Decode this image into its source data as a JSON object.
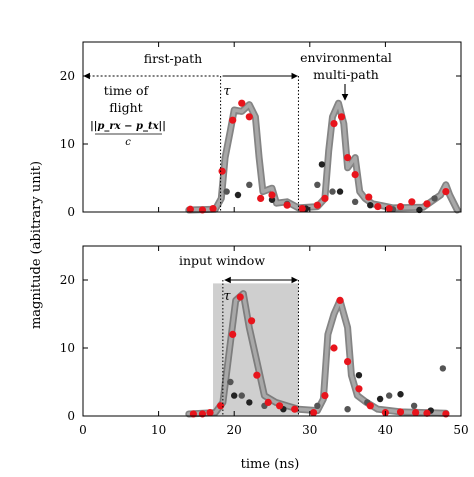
{
  "chart_data": {
    "type": "scatter",
    "xlabel": "time (ns)",
    "ylabel": "magnitude (abitrary unit)",
    "xlim": [
      0,
      50
    ],
    "ylim": [
      0,
      25
    ],
    "xticks": [
      "0",
      "10",
      "20",
      "30",
      "40",
      "50"
    ],
    "yticks": [
      "0",
      "10",
      "20"
    ],
    "panels": [
      {
        "name": "top",
        "annotations": {
          "first_path": "first-path",
          "tau": "τ",
          "tof_line1": "time of",
          "tof_line2": "flight",
          "tof_formula_num": "||p_rx − p_tx||",
          "tof_formula_den": "c",
          "env_line1": "environmental",
          "env_line2": "multi-path"
        },
        "first_path_time": 18.2,
        "tau_end_time": 28.5,
        "red_points": [
          [
            14.2,
            0.4
          ],
          [
            15.8,
            0.3
          ],
          [
            17.2,
            0.5
          ],
          [
            18.4,
            6
          ],
          [
            19.8,
            13.5
          ],
          [
            21,
            16
          ],
          [
            22,
            14
          ],
          [
            23.5,
            2
          ],
          [
            25,
            2.5
          ],
          [
            27,
            1
          ],
          [
            29,
            0.5
          ],
          [
            31,
            1
          ],
          [
            32,
            2
          ],
          [
            33.2,
            13
          ],
          [
            34.2,
            14
          ],
          [
            35,
            8
          ],
          [
            36,
            5.5
          ],
          [
            37.8,
            2.2
          ],
          [
            39,
            0.8
          ],
          [
            40.5,
            0.5
          ],
          [
            42,
            0.8
          ],
          [
            43.5,
            1.5
          ],
          [
            45.5,
            1.2
          ],
          [
            48,
            3
          ]
        ],
        "curve": [
          [
            14,
            0.3
          ],
          [
            17.5,
            0.4
          ],
          [
            18.3,
            2
          ],
          [
            18.8,
            8
          ],
          [
            19.5,
            12
          ],
          [
            20,
            15
          ],
          [
            21,
            14.8
          ],
          [
            22,
            15.8
          ],
          [
            22.8,
            14
          ],
          [
            23.3,
            8
          ],
          [
            23.8,
            3
          ],
          [
            25,
            3.5
          ],
          [
            25.6,
            1.3
          ],
          [
            27,
            1.5
          ],
          [
            28.5,
            0.6
          ],
          [
            31,
            0.8
          ],
          [
            32,
            2
          ],
          [
            32.5,
            9
          ],
          [
            33,
            14
          ],
          [
            33.8,
            16
          ],
          [
            34.5,
            13
          ],
          [
            35,
            6.5
          ],
          [
            36,
            8
          ],
          [
            36.6,
            3
          ],
          [
            37.3,
            2
          ],
          [
            38.3,
            1.2
          ],
          [
            41,
            0.6
          ],
          [
            45,
            0.7
          ],
          [
            47.3,
            2.5
          ],
          [
            48,
            4
          ],
          [
            48.5,
            2.5
          ],
          [
            49.5,
            0.3
          ]
        ],
        "scatter_dark": [
          [
            19,
            3
          ],
          [
            20.5,
            2.5
          ],
          [
            22,
            4
          ],
          [
            25,
            1.8
          ],
          [
            27,
            1.2
          ],
          [
            29.5,
            0.5
          ],
          [
            31,
            4
          ],
          [
            31.6,
            7
          ],
          [
            33,
            3
          ],
          [
            34,
            3
          ],
          [
            36,
            1.5
          ],
          [
            38,
            1
          ],
          [
            41,
            0.4
          ],
          [
            44.5,
            0.3
          ],
          [
            46.5,
            2
          ]
        ]
      },
      {
        "name": "bottom",
        "annotations": {
          "input_window": "input window",
          "tau": "τ"
        },
        "window_start": 17.2,
        "first_path_time": 18.5,
        "window_end": 28.5,
        "window_height": 19.5,
        "red_points": [
          [
            14.6,
            0.3
          ],
          [
            15.8,
            0.3
          ],
          [
            16.8,
            0.5
          ],
          [
            18.2,
            1.5
          ],
          [
            19.8,
            12
          ],
          [
            20.8,
            17.5
          ],
          [
            22.3,
            14
          ],
          [
            23,
            6
          ],
          [
            24.5,
            2
          ],
          [
            26,
            1.5
          ],
          [
            28,
            1
          ],
          [
            30.5,
            0.5
          ],
          [
            32,
            3
          ],
          [
            33.2,
            10
          ],
          [
            34,
            17
          ],
          [
            35,
            8
          ],
          [
            36.5,
            4
          ],
          [
            38,
            1.5
          ],
          [
            40,
            0.5
          ],
          [
            42,
            0.6
          ],
          [
            44,
            0.5
          ],
          [
            45.5,
            0.4
          ],
          [
            48,
            0.3
          ]
        ],
        "curve": [
          [
            14,
            0.3
          ],
          [
            17.5,
            0.5
          ],
          [
            18.5,
            2
          ],
          [
            19.4,
            10
          ],
          [
            20.2,
            17
          ],
          [
            21.2,
            18
          ],
          [
            22,
            13
          ],
          [
            23,
            8
          ],
          [
            24,
            3
          ],
          [
            25.5,
            2
          ],
          [
            27,
            1.5
          ],
          [
            28.5,
            1
          ],
          [
            31,
            0.8
          ],
          [
            31.8,
            2.5
          ],
          [
            32.4,
            12
          ],
          [
            33.2,
            15
          ],
          [
            34,
            17
          ],
          [
            35,
            13
          ],
          [
            35.5,
            6
          ],
          [
            36.3,
            3
          ],
          [
            37.5,
            2
          ],
          [
            39,
            1
          ],
          [
            42,
            0.6
          ],
          [
            48,
            0.4
          ]
        ],
        "scatter_dark": [
          [
            19.5,
            5
          ],
          [
            20,
            3
          ],
          [
            21,
            3
          ],
          [
            22,
            2
          ],
          [
            24,
            1.5
          ],
          [
            26.5,
            1
          ],
          [
            31,
            1.5
          ],
          [
            32,
            3
          ],
          [
            35,
            1
          ],
          [
            36.5,
            6
          ],
          [
            37.6,
            2
          ],
          [
            39.3,
            2.5
          ],
          [
            40.5,
            3
          ],
          [
            42,
            3.2
          ],
          [
            43.8,
            1.5
          ],
          [
            46,
            0.8
          ],
          [
            47.6,
            7
          ]
        ]
      }
    ]
  }
}
